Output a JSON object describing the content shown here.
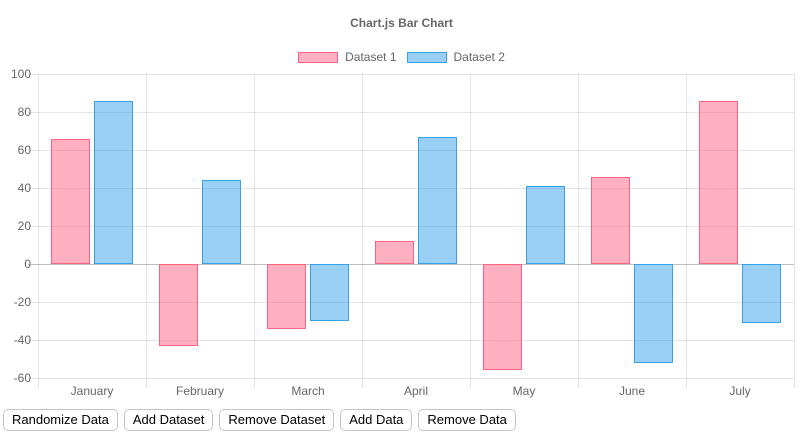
{
  "chart_data": {
    "type": "bar",
    "title": "Chart.js Bar Chart",
    "categories": [
      "January",
      "February",
      "March",
      "April",
      "May",
      "June",
      "July"
    ],
    "series": [
      {
        "name": "Dataset 1",
        "values": [
          66,
          -43,
          -34,
          12,
          -56,
          46,
          86
        ],
        "border_color": "#ff6384",
        "fill_color": "rgba(255,99,132,0.5)"
      },
      {
        "name": "Dataset 2",
        "values": [
          86,
          44,
          -30,
          67,
          41,
          -52,
          -31
        ],
        "border_color": "#36a2eb",
        "fill_color": "rgba(54,162,235,0.5)"
      }
    ],
    "y_ticks": [
      100,
      80,
      60,
      40,
      20,
      0,
      -20,
      -40,
      -60
    ],
    "ylim": [
      -60,
      100
    ],
    "xlabel": "",
    "ylabel": "",
    "grid": true,
    "legend_position": "top"
  },
  "colors": {
    "axis_text": "#666666",
    "gridline": "rgba(0,0,0,0.1)",
    "zero_line": "rgba(0,0,0,0.25)",
    "background": "#ffffff"
  },
  "toolbar": {
    "buttons": [
      "Randomize Data",
      "Add Dataset",
      "Remove Dataset",
      "Add Data",
      "Remove Data"
    ]
  }
}
